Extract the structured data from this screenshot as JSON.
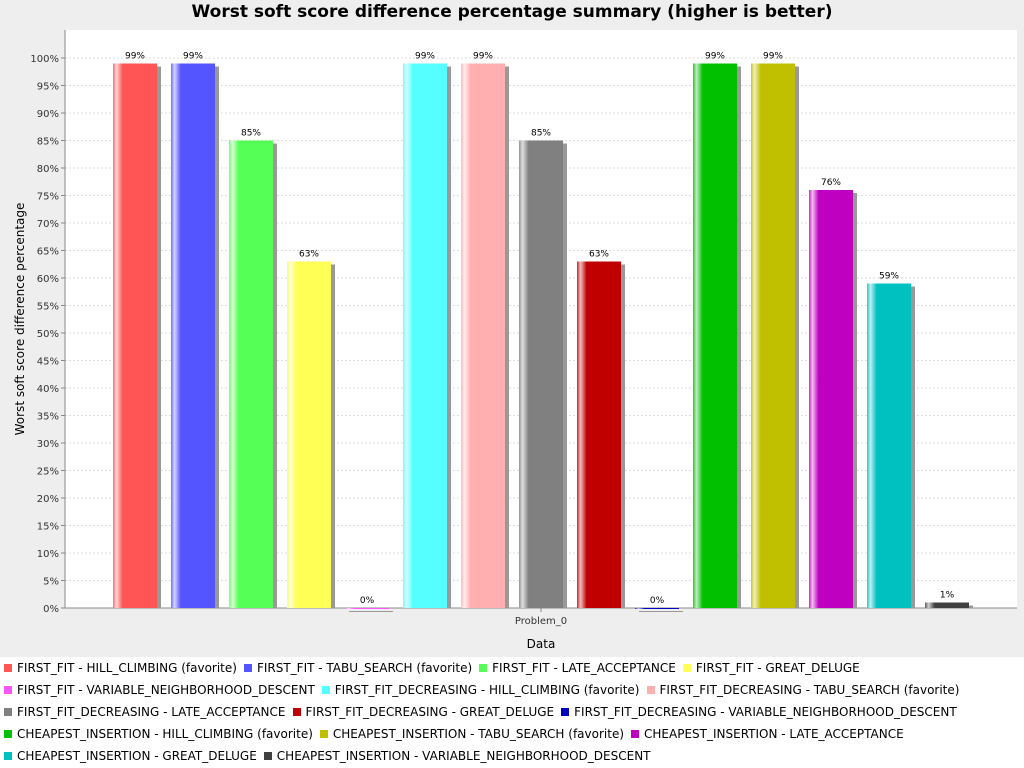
{
  "chart_data": {
    "type": "bar",
    "title": "Worst soft score difference percentage summary (higher is better)",
    "xlabel": "Data",
    "ylabel": "Worst soft score difference percentage",
    "categories": [
      "Problem_0"
    ],
    "ylim": [
      0,
      100
    ],
    "y_ticks": [
      "0%",
      "5%",
      "10%",
      "15%",
      "20%",
      "25%",
      "30%",
      "35%",
      "40%",
      "45%",
      "50%",
      "55%",
      "60%",
      "65%",
      "70%",
      "75%",
      "80%",
      "85%",
      "90%",
      "95%",
      "100%"
    ],
    "grid": true,
    "legend_position": "bottom",
    "series": [
      {
        "name": "FIRST_FIT - HILL_CLIMBING (favorite)",
        "values": [
          99
        ],
        "label": "99%",
        "color": "#ff5555"
      },
      {
        "name": "FIRST_FIT - TABU_SEARCH (favorite)",
        "values": [
          99
        ],
        "label": "99%",
        "color": "#5555ff"
      },
      {
        "name": "FIRST_FIT - LATE_ACCEPTANCE",
        "values": [
          85
        ],
        "label": "85%",
        "color": "#55ff55"
      },
      {
        "name": "FIRST_FIT - GREAT_DELUGE",
        "values": [
          63
        ],
        "label": "63%",
        "color": "#ffff55"
      },
      {
        "name": "FIRST_FIT - VARIABLE_NEIGHBORHOOD_DESCENT",
        "values": [
          0
        ],
        "label": "0%",
        "color": "#ff55ff"
      },
      {
        "name": "FIRST_FIT_DECREASING - HILL_CLIMBING (favorite)",
        "values": [
          99
        ],
        "label": "99%",
        "color": "#55ffff"
      },
      {
        "name": "FIRST_FIT_DECREASING - TABU_SEARCH (favorite)",
        "values": [
          99
        ],
        "label": "99%",
        "color": "#ffafaf"
      },
      {
        "name": "FIRST_FIT_DECREASING - LATE_ACCEPTANCE",
        "values": [
          85
        ],
        "label": "85%",
        "color": "#808080"
      },
      {
        "name": "FIRST_FIT_DECREASING - GREAT_DELUGE",
        "values": [
          63
        ],
        "label": "63%",
        "color": "#c00000"
      },
      {
        "name": "FIRST_FIT_DECREASING - VARIABLE_NEIGHBORHOOD_DESCENT",
        "values": [
          0
        ],
        "label": "0%",
        "color": "#0000c0"
      },
      {
        "name": "CHEAPEST_INSERTION - HILL_CLIMBING (favorite)",
        "values": [
          99
        ],
        "label": "99%",
        "color": "#00c000"
      },
      {
        "name": "CHEAPEST_INSERTION - TABU_SEARCH (favorite)",
        "values": [
          99
        ],
        "label": "99%",
        "color": "#c0c000"
      },
      {
        "name": "CHEAPEST_INSERTION - LATE_ACCEPTANCE",
        "values": [
          76
        ],
        "label": "76%",
        "color": "#c000c0"
      },
      {
        "name": "CHEAPEST_INSERTION - GREAT_DELUGE",
        "values": [
          59
        ],
        "label": "59%",
        "color": "#00c0c0"
      },
      {
        "name": "CHEAPEST_INSERTION - VARIABLE_NEIGHBORHOOD_DESCENT",
        "values": [
          1
        ],
        "label": "1%",
        "color": "#404040"
      }
    ]
  }
}
